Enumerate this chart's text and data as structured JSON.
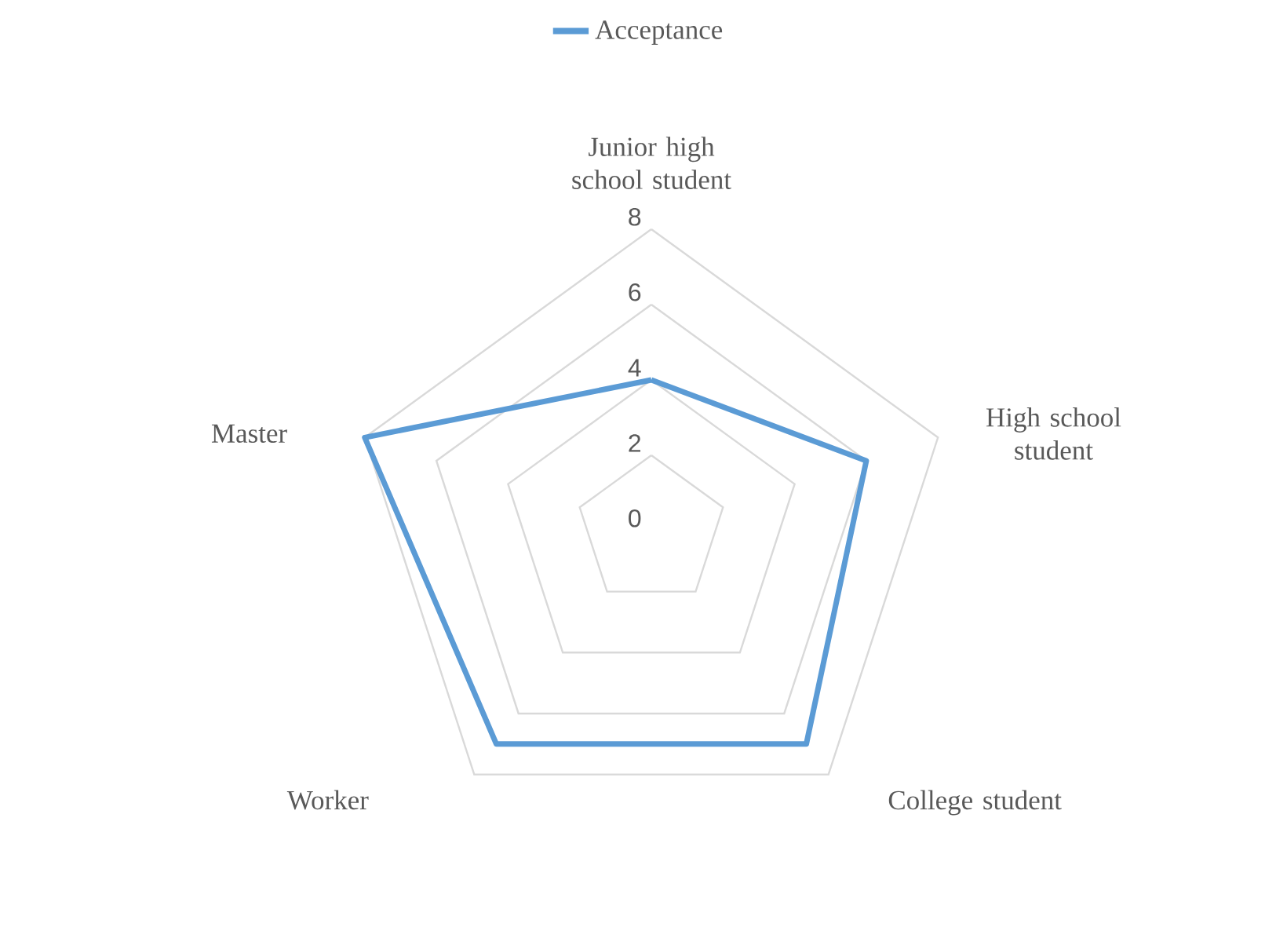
{
  "chart_data": {
    "type": "radar",
    "categories": [
      "Junior high school student",
      "High school student",
      "College student",
      "Worker",
      "Master"
    ],
    "series": [
      {
        "name": "Acceptance",
        "color": "#5b9bd5",
        "values": [
          4,
          6,
          7,
          7,
          8
        ]
      }
    ],
    "ylim": [
      0,
      8
    ],
    "yticks": [
      0,
      2,
      4,
      6,
      8
    ],
    "grid": true,
    "legend": "top"
  }
}
